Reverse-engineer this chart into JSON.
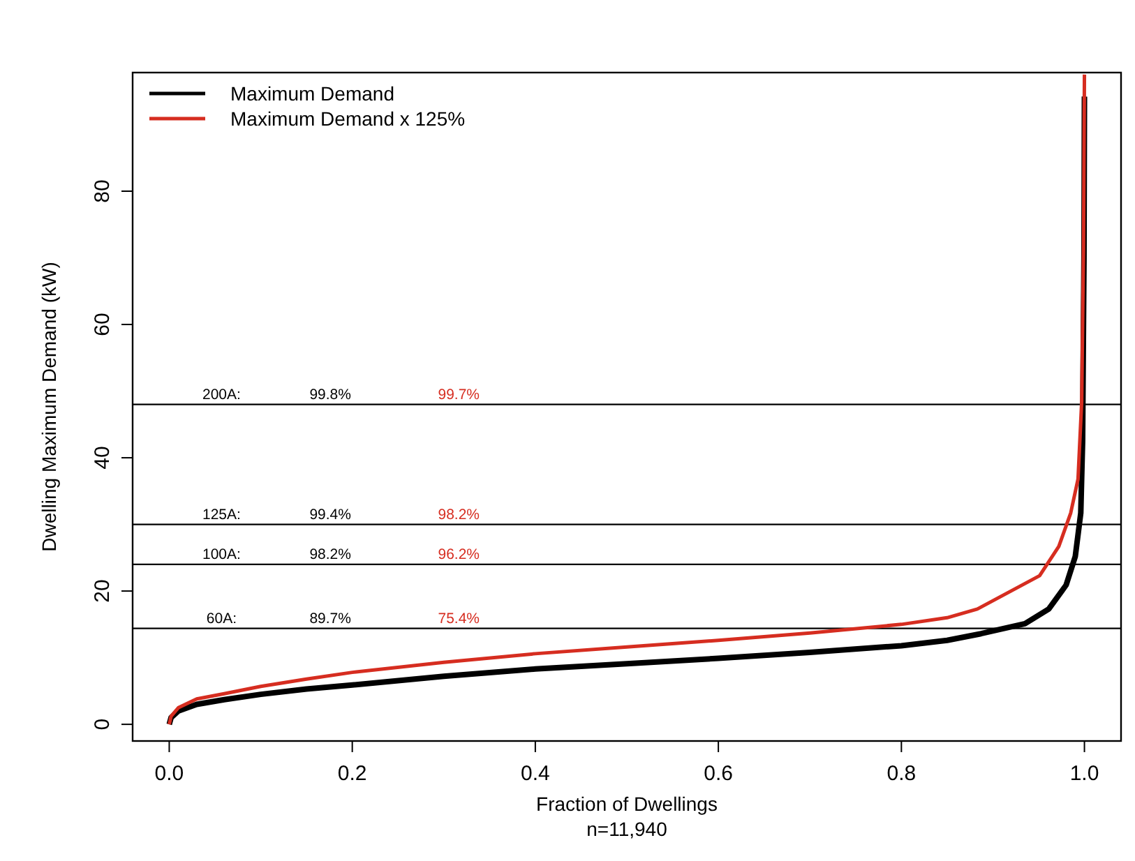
{
  "chart_data": {
    "type": "line",
    "ylabel": "Dwelling Maximum Demand (kW)",
    "xlabel": "Fraction of Dwellings",
    "xlim": [
      -0.04,
      1.04
    ],
    "ylim": [
      -2.5,
      97.8
    ],
    "xticks": [
      {
        "value": 0,
        "label": "0.0"
      },
      {
        "value": 0.2,
        "label": "0.2"
      },
      {
        "value": 0.4,
        "label": "0.4"
      },
      {
        "value": 0.6,
        "label": "0.6"
      },
      {
        "value": 0.8,
        "label": "0.8"
      },
      {
        "value": 1,
        "label": "1.0"
      }
    ],
    "yticks": [
      0,
      20,
      40,
      60,
      80
    ],
    "legend": "top left",
    "grid": false,
    "marker": "none",
    "line_style": "solid",
    "series": [
      {
        "name": "Maximum Demand",
        "color": "#000000",
        "x": [
          0,
          0.002,
          0.01,
          0.03,
          0.06,
          0.1,
          0.15,
          0.2,
          0.3,
          0.4,
          0.5,
          0.6,
          0.7,
          0.8,
          0.85,
          0.887,
          0.935,
          0.961,
          0.98,
          0.99,
          0.996,
          0.998,
          0.9995,
          1.0
        ],
        "values": [
          0,
          1.0,
          2.0,
          3.0,
          3.7,
          4.5,
          5.3,
          5.9,
          7.2,
          8.3,
          9.1,
          9.9,
          10.8,
          11.8,
          12.6,
          13.6,
          15.1,
          17.3,
          20.9,
          25.2,
          31.7,
          42.5,
          70,
          94.2
        ]
      },
      {
        "name": "Maximum Demand x 125%",
        "color": "#d62d20",
        "x": [
          0,
          0.002,
          0.01,
          0.03,
          0.06,
          0.1,
          0.15,
          0.2,
          0.3,
          0.4,
          0.5,
          0.6,
          0.7,
          0.8,
          0.85,
          0.883,
          0.951,
          0.972,
          0.985,
          0.993,
          0.997,
          0.999,
          1.0
        ],
        "values": [
          0,
          1.2,
          2.5,
          3.8,
          4.6,
          5.7,
          6.8,
          7.8,
          9.3,
          10.6,
          11.6,
          12.6,
          13.7,
          15.0,
          16.0,
          17.3,
          22.3,
          26.7,
          31.7,
          36.8,
          48.4,
          71.4,
          97.5
        ]
      }
    ],
    "ref_lines": [
      {
        "axis": "y",
        "value": 48,
        "label": "200A:",
        "color": "#000000"
      },
      {
        "axis": "y",
        "value": 30,
        "label": "125A:",
        "color": "#000000"
      },
      {
        "axis": "y",
        "value": 24,
        "label": "100A:",
        "color": "#000000"
      },
      {
        "axis": "y",
        "value": 14.4,
        "label": "60A:",
        "color": "#000000"
      }
    ],
    "annotations": [
      {
        "text": "99.8%",
        "y": 48
      },
      {
        "text": "99.7%",
        "y": 48
      },
      {
        "text": "99.4%",
        "y": 30
      },
      {
        "text": "98.2%",
        "y": 30
      },
      {
        "text": "98.2%",
        "y": 24
      },
      {
        "text": "96.2%",
        "y": 24
      },
      {
        "text": "89.7%",
        "y": 14.4
      },
      {
        "text": "75.4%",
        "y": 14.4
      },
      "n=11,940"
    ]
  }
}
